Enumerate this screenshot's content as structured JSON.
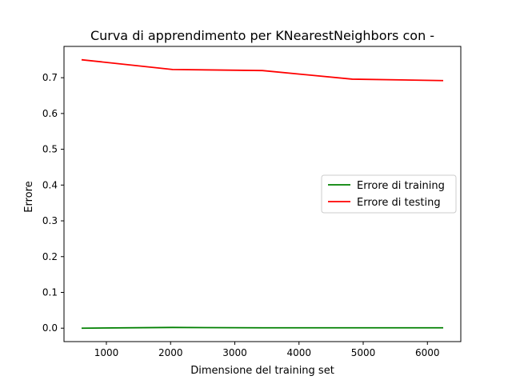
{
  "chart_data": {
    "type": "line",
    "title": "Curva di apprendimento per KNearestNeighbors con -",
    "xlabel": "Dimensione del training set",
    "ylabel": "Errore",
    "xlim": [
      340,
      6520
    ],
    "ylim": [
      -0.0375,
      0.7875
    ],
    "xticks": [
      1000,
      2000,
      3000,
      4000,
      5000,
      6000
    ],
    "yticks": [
      0.0,
      0.1,
      0.2,
      0.3,
      0.4,
      0.5,
      0.6,
      0.7
    ],
    "ytick_labels": [
      "0.0",
      "0.1",
      "0.2",
      "0.3",
      "0.4",
      "0.5",
      "0.6",
      "0.7"
    ],
    "grid": false,
    "legend_position": "center-right",
    "x": [
      625,
      2030,
      3430,
      4830,
      6235
    ],
    "series": [
      {
        "name": "Errore di training",
        "color": "#008000",
        "values": [
          0.0,
          0.002,
          0.001,
          0.001,
          0.001
        ]
      },
      {
        "name": "Errore di testing",
        "color": "#ff0000",
        "values": [
          0.75,
          0.723,
          0.72,
          0.696,
          0.692
        ]
      }
    ]
  }
}
